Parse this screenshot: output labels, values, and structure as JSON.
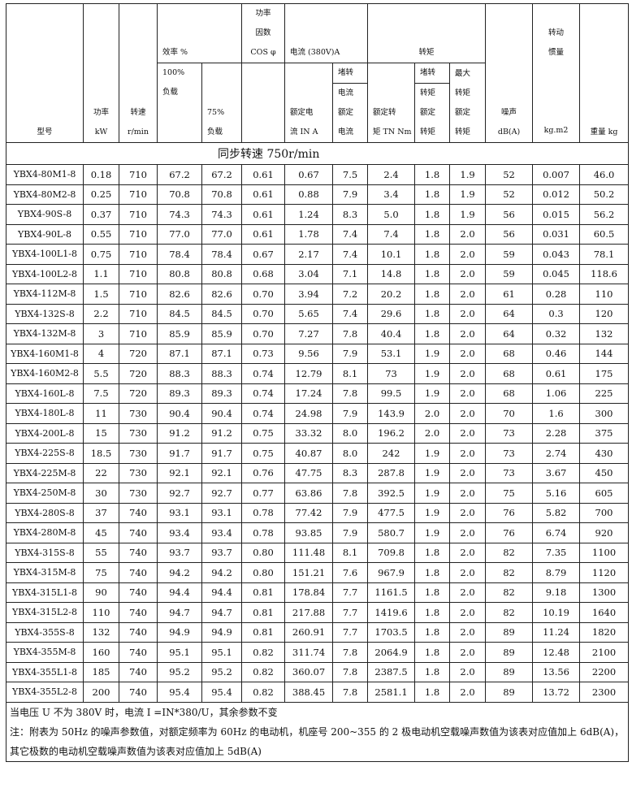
{
  "header": {
    "model": "型号",
    "power": [
      "功率",
      "kW"
    ],
    "speed": [
      "转速",
      "r/min"
    ],
    "efficiency": "效率 %",
    "eff_100": [
      "100%",
      "负载"
    ],
    "eff_75": [
      "75%",
      "负载"
    ],
    "pf": [
      "功率",
      "因数",
      "COS φ"
    ],
    "current": "电流  (380V)A",
    "rated_current": [
      "额定电",
      "流 IN A"
    ],
    "locked_current": [
      "堵转",
      "电流",
      "额定",
      "电流"
    ],
    "torque": "转矩",
    "rated_torque": [
      "额定转",
      "矩 TN Nm"
    ],
    "locked_torque": [
      "堵转",
      "转矩",
      "额定",
      "转矩"
    ],
    "max_torque": [
      "最大",
      "转矩",
      "额定",
      "转矩"
    ],
    "noise": [
      "噪声",
      "dB(A)"
    ],
    "inertia": [
      "转动",
      "惯量",
      "kg.m2"
    ],
    "weight": "重量 kg"
  },
  "section_title": "同步转速 750r/min",
  "rows": [
    [
      "YBX4-80M1-8",
      "0.18",
      "710",
      "67.2",
      "67.2",
      "0.61",
      "0.67",
      "7.5",
      "2.4",
      "1.8",
      "1.9",
      "52",
      "0.007",
      "46.0"
    ],
    [
      "YBX4-80M2-8",
      "0.25",
      "710",
      "70.8",
      "70.8",
      "0.61",
      "0.88",
      "7.9",
      "3.4",
      "1.8",
      "1.9",
      "52",
      "0.012",
      "50.2"
    ],
    [
      "YBX4-90S-8",
      "0.37",
      "710",
      "74.3",
      "74.3",
      "0.61",
      "1.24",
      "8.3",
      "5.0",
      "1.8",
      "1.9",
      "56",
      "0.015",
      "56.2"
    ],
    [
      "YBX4-90L-8",
      "0.55",
      "710",
      "77.0",
      "77.0",
      "0.61",
      "1.78",
      "7.4",
      "7.4",
      "1.8",
      "2.0",
      "56",
      "0.031",
      "60.5"
    ],
    [
      "YBX4-100L1-8",
      "0.75",
      "710",
      "78.4",
      "78.4",
      "0.67",
      "2.17",
      "7.4",
      "10.1",
      "1.8",
      "2.0",
      "59",
      "0.043",
      "78.1"
    ],
    [
      "YBX4-100L2-8",
      "1.1",
      "710",
      "80.8",
      "80.8",
      "0.68",
      "3.04",
      "7.1",
      "14.8",
      "1.8",
      "2.0",
      "59",
      "0.045",
      "118.6"
    ],
    [
      "YBX4-112M-8",
      "1.5",
      "710",
      "82.6",
      "82.6",
      "0.70",
      "3.94",
      "7.2",
      "20.2",
      "1.8",
      "2.0",
      "61",
      "0.28",
      "110"
    ],
    [
      "YBX4-132S-8",
      "2.2",
      "710",
      "84.5",
      "84.5",
      "0.70",
      "5.65",
      "7.4",
      "29.6",
      "1.8",
      "2.0",
      "64",
      "0.3",
      "120"
    ],
    [
      "YBX4-132M-8",
      "3",
      "710",
      "85.9",
      "85.9",
      "0.70",
      "7.27",
      "7.8",
      "40.4",
      "1.8",
      "2.0",
      "64",
      "0.32",
      "132"
    ],
    [
      "YBX4-160M1-8",
      "4",
      "720",
      "87.1",
      "87.1",
      "0.73",
      "9.56",
      "7.9",
      "53.1",
      "1.9",
      "2.0",
      "68",
      "0.46",
      "144"
    ],
    [
      "YBX4-160M2-8",
      "5.5",
      "720",
      "88.3",
      "88.3",
      "0.74",
      "12.79",
      "8.1",
      "73",
      "1.9",
      "2.0",
      "68",
      "0.61",
      "175"
    ],
    [
      "YBX4-160L-8",
      "7.5",
      "720",
      "89.3",
      "89.3",
      "0.74",
      "17.24",
      "7.8",
      "99.5",
      "1.9",
      "2.0",
      "68",
      "1.06",
      "225"
    ],
    [
      "YBX4-180L-8",
      "11",
      "730",
      "90.4",
      "90.4",
      "0.74",
      "24.98",
      "7.9",
      "143.9",
      "2.0",
      "2.0",
      "70",
      "1.6",
      "300"
    ],
    [
      "YBX4-200L-8",
      "15",
      "730",
      "91.2",
      "91.2",
      "0.75",
      "33.32",
      "8.0",
      "196.2",
      "2.0",
      "2.0",
      "73",
      "2.28",
      "375"
    ],
    [
      "YBX4-225S-8",
      "18.5",
      "730",
      "91.7",
      "91.7",
      "0.75",
      "40.87",
      "8.0",
      "242",
      "1.9",
      "2.0",
      "73",
      "2.74",
      "430"
    ],
    [
      "YBX4-225M-8",
      "22",
      "730",
      "92.1",
      "92.1",
      "0.76",
      "47.75",
      "8.3",
      "287.8",
      "1.9",
      "2.0",
      "73",
      "3.67",
      "450"
    ],
    [
      "YBX4-250M-8",
      "30",
      "730",
      "92.7",
      "92.7",
      "0.77",
      "63.86",
      "7.8",
      "392.5",
      "1.9",
      "2.0",
      "75",
      "5.16",
      "605"
    ],
    [
      "YBX4-280S-8",
      "37",
      "740",
      "93.1",
      "93.1",
      "0.78",
      "77.42",
      "7.9",
      "477.5",
      "1.9",
      "2.0",
      "76",
      "5.82",
      "700"
    ],
    [
      "YBX4-280M-8",
      "45",
      "740",
      "93.4",
      "93.4",
      "0.78",
      "93.85",
      "7.9",
      "580.7",
      "1.9",
      "2.0",
      "76",
      "6.74",
      "920"
    ],
    [
      "YBX4-315S-8",
      "55",
      "740",
      "93.7",
      "93.7",
      "0.80",
      "111.48",
      "8.1",
      "709.8",
      "1.8",
      "2.0",
      "82",
      "7.35",
      "1100"
    ],
    [
      "YBX4-315M-8",
      "75",
      "740",
      "94.2",
      "94.2",
      "0.80",
      "151.21",
      "7.6",
      "967.9",
      "1.8",
      "2.0",
      "82",
      "8.79",
      "1120"
    ],
    [
      "YBX4-315L1-8",
      "90",
      "740",
      "94.4",
      "94.4",
      "0.81",
      "178.84",
      "7.7",
      "1161.5",
      "1.8",
      "2.0",
      "82",
      "9.18",
      "1300"
    ],
    [
      "YBX4-315L2-8",
      "110",
      "740",
      "94.7",
      "94.7",
      "0.81",
      "217.88",
      "7.7",
      "1419.6",
      "1.8",
      "2.0",
      "82",
      "10.19",
      "1640"
    ],
    [
      "YBX4-355S-8",
      "132",
      "740",
      "94.9",
      "94.9",
      "0.81",
      "260.91",
      "7.7",
      "1703.5",
      "1.8",
      "2.0",
      "89",
      "11.24",
      "1820"
    ],
    [
      "YBX4-355M-8",
      "160",
      "740",
      "95.1",
      "95.1",
      "0.82",
      "311.74",
      "7.8",
      "2064.9",
      "1.8",
      "2.0",
      "89",
      "12.48",
      "2100"
    ],
    [
      "YBX4-355L1-8",
      "185",
      "740",
      "95.2",
      "95.2",
      "0.82",
      "360.07",
      "7.8",
      "2387.5",
      "1.8",
      "2.0",
      "89",
      "13.56",
      "2200"
    ],
    [
      "YBX4-355L2-8",
      "200",
      "740",
      "95.4",
      "95.4",
      "0.82",
      "388.45",
      "7.8",
      "2581.1",
      "1.8",
      "2.0",
      "89",
      "13.72",
      "2300"
    ]
  ],
  "notes": [
    "  当电压 U 不为 380V 时，电流 I =IN*380/U，其余参数不变",
    "注：附表为 50Hz 的噪声参数值，对额定频率为 60Hz 的电动机，机座号 200~355 的 2 极电动机空载噪声数值为该表对应值加上 6dB(A)，其它极数的电动机空载噪声数值为该表对应值加上 5dB(A)"
  ]
}
